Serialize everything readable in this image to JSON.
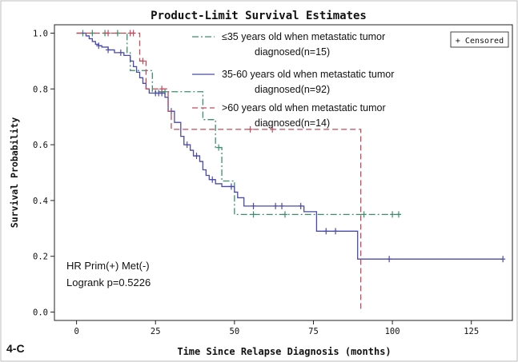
{
  "panel_label": "4-C",
  "chart_data": {
    "type": "line",
    "subtype": "kaplan-meier step",
    "title": "Product-Limit Survival Estimates",
    "xlabel": "Time Since Relapse Diagnosis (months)",
    "ylabel": "Survival Probability",
    "xlim": [
      -7,
      138
    ],
    "ylim": [
      -0.03,
      1.03
    ],
    "x_ticks": [
      0,
      25,
      50,
      75,
      100,
      125
    ],
    "y_ticks": [
      0.0,
      0.2,
      0.4,
      0.6,
      0.8,
      1.0
    ],
    "x_tick_labels": [
      "0",
      "25",
      "50",
      "75",
      "100",
      "125"
    ],
    "y_tick_labels": [
      "0.0",
      "0.2",
      "0.4",
      "0.6",
      "0.8",
      "1.0"
    ],
    "grid": false,
    "censored_legend": "+ Censored",
    "series": [
      {
        "name_line1": "≤35 years old when metastatic tumor",
        "name_line2": "diagnosed(n=15)",
        "color": "#3b8f6a",
        "dash": "dashdot",
        "steps": [
          [
            0,
            1.0
          ],
          [
            16,
            0.93
          ],
          [
            17,
            0.866
          ],
          [
            24,
            0.79
          ],
          [
            38,
            0.79
          ],
          [
            40,
            0.69
          ],
          [
            44,
            0.59
          ],
          [
            46,
            0.47
          ],
          [
            50,
            0.35
          ],
          [
            103,
            0.35
          ]
        ],
        "censored": [
          [
            2,
            1.0
          ],
          [
            5,
            1.0
          ],
          [
            9,
            1.0
          ],
          [
            13,
            1.0
          ],
          [
            28,
            0.79
          ],
          [
            45,
            0.59
          ],
          [
            56,
            0.35
          ],
          [
            66,
            0.35
          ],
          [
            91,
            0.35
          ],
          [
            100,
            0.35
          ],
          [
            102,
            0.35
          ]
        ]
      },
      {
        "name_line1": "35-60 years old when metastatic tumor",
        "name_line2": "diagnosed(n=92)",
        "color": "#4a4aa6",
        "dash": "solid",
        "steps": [
          [
            0,
            1.0
          ],
          [
            3,
            0.99
          ],
          [
            4,
            0.98
          ],
          [
            5,
            0.97
          ],
          [
            6,
            0.96
          ],
          [
            7,
            0.955
          ],
          [
            8,
            0.95
          ],
          [
            10,
            0.94
          ],
          [
            12,
            0.93
          ],
          [
            15,
            0.92
          ],
          [
            17,
            0.9
          ],
          [
            18,
            0.88
          ],
          [
            19,
            0.86
          ],
          [
            20,
            0.84
          ],
          [
            21,
            0.82
          ],
          [
            22,
            0.8
          ],
          [
            23,
            0.785
          ],
          [
            28,
            0.77
          ],
          [
            29,
            0.72
          ],
          [
            31,
            0.68
          ],
          [
            33,
            0.63
          ],
          [
            34,
            0.6
          ],
          [
            36,
            0.58
          ],
          [
            37,
            0.56
          ],
          [
            39,
            0.54
          ],
          [
            40,
            0.51
          ],
          [
            41,
            0.49
          ],
          [
            42,
            0.475
          ],
          [
            44,
            0.46
          ],
          [
            46,
            0.45
          ],
          [
            50,
            0.43
          ],
          [
            51,
            0.41
          ],
          [
            53,
            0.38
          ],
          [
            72,
            0.36
          ],
          [
            76,
            0.29
          ],
          [
            89,
            0.19
          ],
          [
            135,
            0.19
          ]
        ],
        "censored": [
          [
            7,
            0.955
          ],
          [
            10,
            0.94
          ],
          [
            14,
            0.93
          ],
          [
            25,
            0.785
          ],
          [
            26,
            0.785
          ],
          [
            27,
            0.785
          ],
          [
            30,
            0.72
          ],
          [
            35,
            0.6
          ],
          [
            38,
            0.56
          ],
          [
            43,
            0.475
          ],
          [
            49,
            0.45
          ],
          [
            56,
            0.38
          ],
          [
            63,
            0.38
          ],
          [
            65,
            0.38
          ],
          [
            71,
            0.38
          ],
          [
            79,
            0.29
          ],
          [
            82,
            0.29
          ],
          [
            99,
            0.19
          ],
          [
            135,
            0.19
          ]
        ]
      },
      {
        "name_line1": ">60 years old when metastatic tumor",
        "name_line2": "diagnosed(n=14)",
        "color": "#c24a5a",
        "dash": "dashed",
        "steps": [
          [
            0,
            1.0
          ],
          [
            20,
            0.9
          ],
          [
            22,
            0.8
          ],
          [
            29,
            0.72
          ],
          [
            30,
            0.655
          ],
          [
            90,
            0.655
          ],
          [
            90,
            0.0
          ]
        ],
        "censored": [
          [
            10,
            1.0
          ],
          [
            17,
            1.0
          ],
          [
            18,
            1.0
          ],
          [
            21,
            0.9
          ],
          [
            27,
            0.8
          ],
          [
            55,
            0.655
          ],
          [
            62,
            0.655
          ]
        ]
      }
    ],
    "annotations": [
      "HR Prim(+) Met(-)",
      "Logrank p=0.5226"
    ]
  }
}
